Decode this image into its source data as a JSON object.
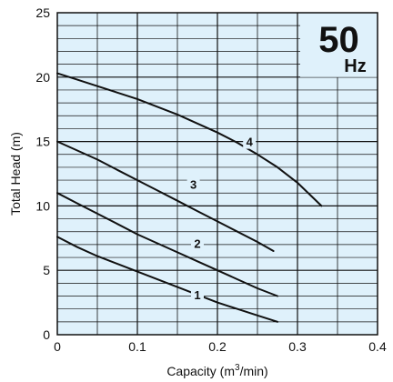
{
  "chart_data": {
    "type": "line",
    "xlabel": "Capacity (m³/min)",
    "xlabel_parts": {
      "before": "Capacity (m",
      "sup": "3",
      "after": "/min)"
    },
    "ylabel": "Total Head (m)",
    "xlim": [
      0,
      0.4
    ],
    "ylim": [
      0,
      25
    ],
    "x_ticks": [
      "0",
      "0.1",
      "0.2",
      "0.3",
      "0.4"
    ],
    "x_tick_values": [
      0,
      0.1,
      0.2,
      0.3,
      0.4
    ],
    "y_ticks": [
      "0",
      "5",
      "10",
      "15",
      "20",
      "25"
    ],
    "y_tick_values": [
      0,
      5,
      10,
      15,
      20,
      25
    ],
    "grid": true,
    "plot_background": "#dff1fb",
    "gridline_color": "#111111",
    "frequency_badge": {
      "value": "50",
      "unit": "Hz",
      "position": "top-right"
    },
    "series": [
      {
        "name": "1",
        "x": [
          0,
          0.025,
          0.05,
          0.075,
          0.1,
          0.125,
          0.15,
          0.175,
          0.2,
          0.225,
          0.25,
          0.275
        ],
        "y": [
          7.6,
          6.8,
          6.1,
          5.5,
          4.9,
          4.3,
          3.7,
          3.1,
          2.5,
          2.0,
          1.5,
          1.0
        ],
        "label_at": [
          0.175,
          3.1
        ]
      },
      {
        "name": "2",
        "x": [
          0,
          0.025,
          0.05,
          0.075,
          0.1,
          0.125,
          0.15,
          0.175,
          0.2,
          0.225,
          0.25,
          0.275
        ],
        "y": [
          11.0,
          10.2,
          9.4,
          8.6,
          7.8,
          7.1,
          6.4,
          5.7,
          5.0,
          4.3,
          3.6,
          3.0
        ],
        "label_at": [
          0.175,
          7.1
        ]
      },
      {
        "name": "3",
        "x": [
          0,
          0.025,
          0.05,
          0.075,
          0.1,
          0.125,
          0.15,
          0.175,
          0.2,
          0.225,
          0.25,
          0.27
        ],
        "y": [
          15.0,
          14.3,
          13.6,
          12.8,
          12.0,
          11.2,
          10.4,
          9.6,
          8.8,
          8.0,
          7.2,
          6.5
        ],
        "label_at": [
          0.17,
          11.7
        ]
      },
      {
        "name": "4",
        "x": [
          0,
          0.025,
          0.05,
          0.075,
          0.1,
          0.125,
          0.15,
          0.175,
          0.2,
          0.225,
          0.25,
          0.275,
          0.3,
          0.33
        ],
        "y": [
          20.3,
          19.8,
          19.3,
          18.8,
          18.3,
          17.7,
          17.1,
          16.4,
          15.7,
          14.9,
          14.0,
          13.0,
          11.8,
          10.0
        ],
        "label_at": [
          0.24,
          15.0
        ]
      }
    ]
  }
}
